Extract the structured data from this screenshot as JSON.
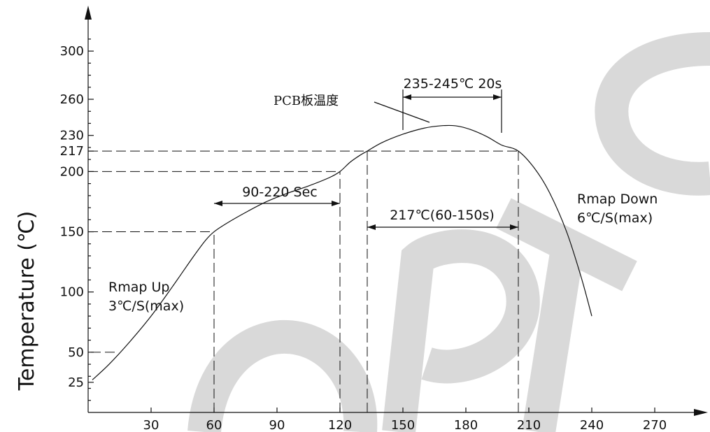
{
  "chart_data": {
    "type": "line",
    "title": "",
    "ylabel": "Temperature (℃)",
    "xlabel": "",
    "x_ticks": [
      30,
      60,
      90,
      120,
      150,
      180,
      210,
      240,
      270
    ],
    "y_ticks": [
      25,
      50,
      100,
      150,
      200,
      217,
      230,
      260,
      300
    ],
    "xlim": [
      0,
      285
    ],
    "ylim": [
      0,
      320
    ],
    "series": [
      {
        "name": "PCB板温度",
        "x": [
          2,
          10,
          20,
          30,
          40,
          50,
          56,
          60,
          66,
          75,
          85,
          95,
          105,
          115,
          120,
          125,
          130,
          133,
          140,
          150,
          160,
          168,
          175,
          182,
          190,
          197,
          205,
          213,
          220,
          228,
          235,
          240
        ],
        "y": [
          27,
          40,
          59,
          80,
          104,
          129,
          143,
          150,
          157,
          166,
          175,
          182,
          188,
          195,
          200,
          208,
          214,
          217,
          224,
          231,
          236,
          238,
          238,
          235,
          229,
          222,
          217,
          202,
          182,
          150,
          112,
          80
        ]
      }
    ],
    "annotations": {
      "ramp_up": [
        "Rmap Up",
        "3℃/S(max)"
      ],
      "ramp_down": [
        "Rmap Down",
        "6℃/S(max)"
      ],
      "preheat": "90-220 Sec",
      "above_217": "217℃(60-150s)",
      "peak": "235-245℃ 20s",
      "pcb_label": "PCB板温度"
    },
    "reference_lines": [
      {
        "x": 60,
        "y": 150
      },
      {
        "x": 120,
        "y": 200
      },
      {
        "x": 133,
        "y": 217
      },
      {
        "x": 205,
        "y": 217
      }
    ],
    "spans": {
      "preheat": [
        60,
        120
      ],
      "above_217": [
        133,
        205
      ],
      "peak": [
        150,
        197
      ]
    },
    "grid": false
  },
  "watermark": {
    "text": "OPTO",
    "color": "#d9d9d9"
  }
}
